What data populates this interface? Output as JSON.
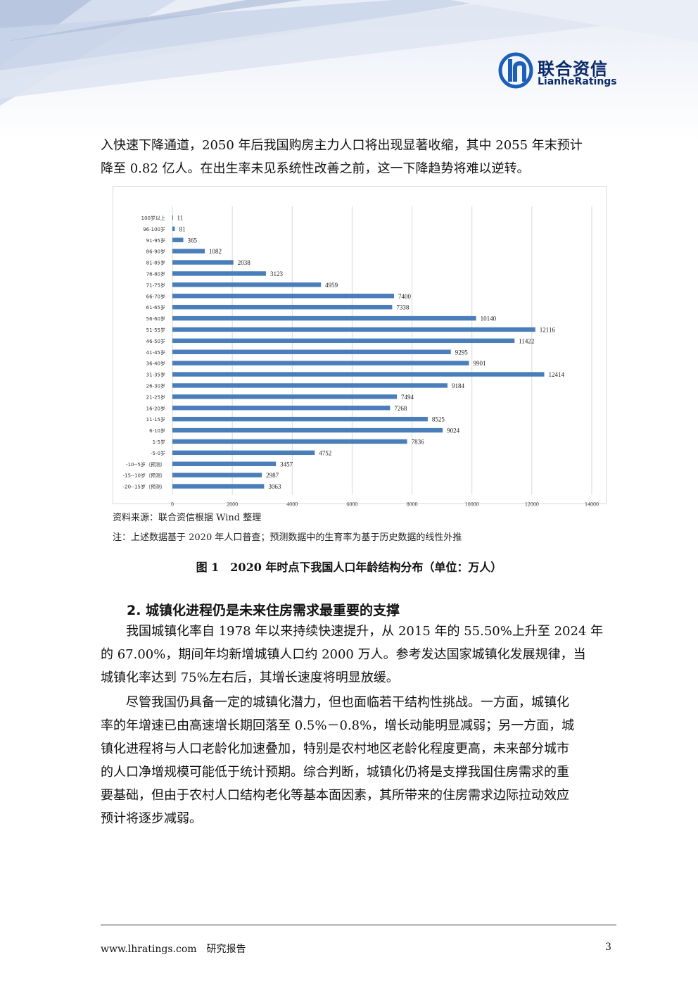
{
  "header": {
    "logo_cn": "联合资信",
    "logo_en": "LianheRatings"
  },
  "intro_paragraph": {
    "lines": [
      "入快速下降通道，2050 年后我国购房主力人口将出现显著收缩，其中 2055 年末预计",
      "降至 0.82 亿人。在出生率未见系统性改善之前，这一下降趋势将难以逆转。"
    ]
  },
  "chart_data": {
    "type": "bar",
    "orientation": "horizontal",
    "categories": [
      "100岁以上",
      "96-100岁",
      "91-95岁",
      "86-90岁",
      "81-85岁",
      "76-80岁",
      "71-75岁",
      "66-70岁",
      "61-65岁",
      "56-60岁",
      "51-55岁",
      "46-50岁",
      "41-45岁",
      "36-40岁",
      "31-35岁",
      "26-30岁",
      "21-25岁",
      "16-20岁",
      "11-15岁",
      "6-10岁",
      "1-5岁",
      "-5-0岁",
      "-10--5岁（预测）",
      "-15--10岁（预测）",
      "-20--15岁（预测）"
    ],
    "values": [
      11,
      81,
      365,
      1082,
      2038,
      3123,
      4959,
      7400,
      7338,
      10140,
      12116,
      11422,
      9295,
      9901,
      12414,
      9184,
      7494,
      7268,
      8525,
      9024,
      7836,
      4752,
      3457,
      2987,
      3063
    ],
    "x_ticks": [
      "0",
      "2000",
      "4000",
      "6000",
      "8000",
      "10000",
      "12000",
      "14000"
    ],
    "xlim": [
      0,
      14000
    ],
    "grid": true,
    "bar_color": "#4a7ebb"
  },
  "chart_notes": {
    "source": "资料来源：联合资信根据 Wind 整理",
    "note": "注：上述数据基于 2020 年人口普查；预测数据中的生育率为基于历史数据的线性外推"
  },
  "figure_caption": "图 1　2020 年时点下我国人口年龄结构分布（单位：万人）",
  "section": {
    "heading": "2. 城镇化进程仍是未来住房需求最重要的支撑",
    "paragraph1": [
      "我国城镇化率自 1978 年以来持续快速提升，从 2015 年的 55.50%上升至 2024 年",
      "的 67.00%，期间年均新增城镇人口约 2000 万人。参考发达国家城镇化发展规律，当",
      "城镇化率达到 75%左右后，其增长速度将明显放缓。"
    ],
    "paragraph2": [
      "尽管我国仍具备一定的城镇化潜力，但也面临若干结构性挑战。一方面，城镇化",
      "率的年增速已由高速增长期回落至 0.5%－0.8%，增长动能明显减弱；另一方面，城",
      "镇化进程将与人口老龄化加速叠加，特别是农村地区老龄化程度更高，未来部分城市",
      "的人口净增规模可能低于统计预期。综合判断，城镇化仍将是支撑我国住房需求的重",
      "要基础，但由于农村人口结构老化等基本面因素，其所带来的住房需求边际拉动效应",
      "预计将逐步减弱。"
    ]
  },
  "footer": {
    "website": "www.lhratings.com",
    "label": "研究报告",
    "page": "3"
  }
}
